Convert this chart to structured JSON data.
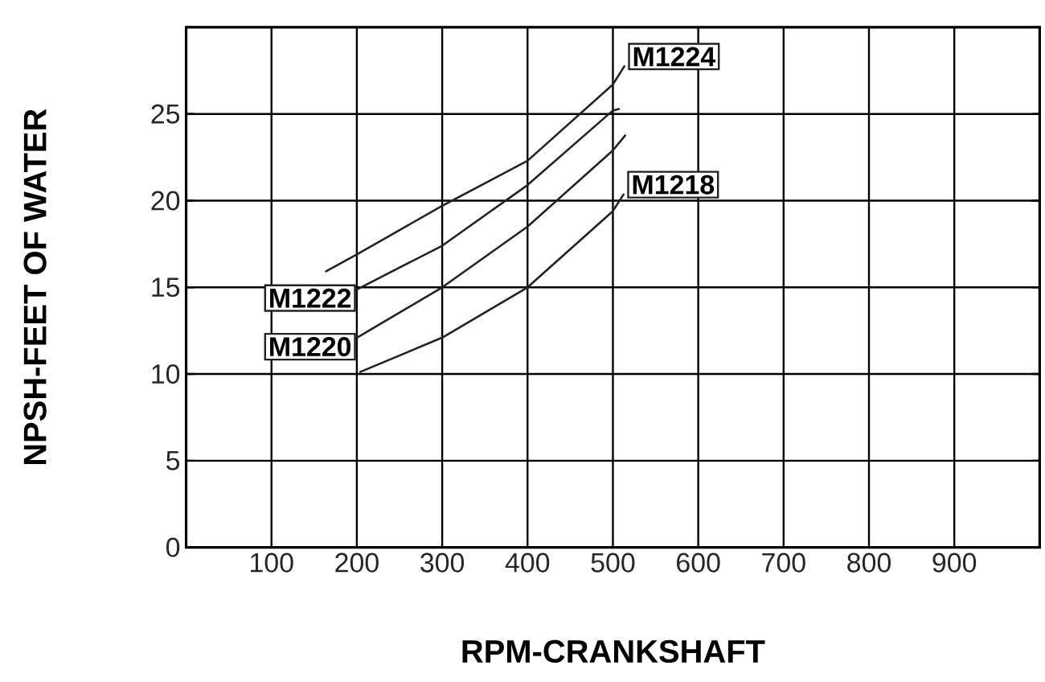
{
  "chart_data": {
    "type": "line",
    "xlabel": "RPM-CRANKSHAFT",
    "ylabel": "NPSH-FEET OF WATER",
    "xlim": [
      0,
      1000
    ],
    "xticks": [
      {
        "value": 0,
        "label": null
      },
      100,
      200,
      300,
      400,
      500,
      600,
      700,
      800,
      900,
      {
        "value": 1000,
        "label": null
      }
    ],
    "ylim": [
      0,
      30
    ],
    "yticks": [
      0,
      5,
      10,
      15,
      20,
      25,
      {
        "value": 30,
        "label": null
      }
    ],
    "grid": true,
    "line_style": "solid",
    "marker": "none",
    "series": [
      {
        "name": "M1224",
        "color": "#222222",
        "x": [
          163,
          200,
          300,
          400,
          500,
          514
        ],
        "values": [
          15.9,
          16.9,
          19.7,
          22.3,
          26.7,
          27.8
        ]
      },
      {
        "name": "M1222",
        "color": "#222222",
        "x": [
          197,
          300,
          400,
          500,
          508
        ],
        "values": [
          14.8,
          17.4,
          20.9,
          25.2,
          25.3
        ]
      },
      {
        "name": "M1220",
        "color": "#222222",
        "x": [
          197,
          300,
          400,
          500,
          515
        ],
        "values": [
          12.0,
          15.0,
          18.5,
          22.9,
          23.8
        ]
      },
      {
        "name": "M1218",
        "color": "#222222",
        "x": [
          203,
          300,
          400,
          500,
          513
        ],
        "values": [
          10.1,
          12.1,
          15.0,
          19.4,
          20.4
        ]
      }
    ]
  }
}
